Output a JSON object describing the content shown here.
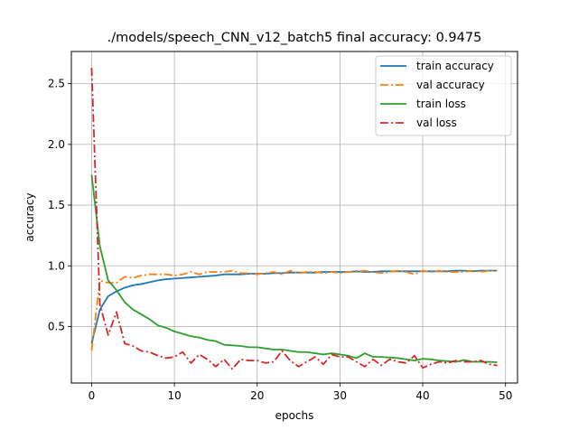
{
  "chart_data": {
    "type": "line",
    "title": "./models/speech_CNN_v12_batch5 final accuracy: 0.9475",
    "xlabel": "epochs",
    "ylabel": "accuracy",
    "xlim": [
      -2.45,
      51.45
    ],
    "ylim": [
      0.035,
      2.765
    ],
    "xticks": [
      0,
      10,
      20,
      30,
      40,
      50
    ],
    "yticks": [
      0.5,
      1.0,
      1.5,
      2.0,
      2.5
    ],
    "xtick_labels": [
      "0",
      "10",
      "20",
      "30",
      "40",
      "50"
    ],
    "ytick_labels": [
      "0.5",
      "1.0",
      "1.5",
      "2.0",
      "2.5"
    ],
    "grid": true,
    "legend_position": "top-right",
    "x": [
      0,
      1,
      2,
      3,
      4,
      5,
      6,
      7,
      8,
      9,
      10,
      11,
      12,
      13,
      14,
      15,
      16,
      17,
      18,
      19,
      20,
      21,
      22,
      23,
      24,
      25,
      26,
      27,
      28,
      29,
      30,
      31,
      32,
      33,
      34,
      35,
      36,
      37,
      38,
      39,
      40,
      41,
      42,
      43,
      44,
      45,
      46,
      47,
      48,
      49
    ],
    "series": [
      {
        "name": "train accuracy",
        "color": "#1f77b4",
        "dash": "solid",
        "values": [
          0.36,
          0.64,
          0.75,
          0.79,
          0.82,
          0.84,
          0.85,
          0.865,
          0.88,
          0.89,
          0.895,
          0.9,
          0.905,
          0.91,
          0.915,
          0.92,
          0.93,
          0.93,
          0.93,
          0.935,
          0.935,
          0.935,
          0.94,
          0.94,
          0.945,
          0.945,
          0.945,
          0.945,
          0.95,
          0.95,
          0.95,
          0.95,
          0.955,
          0.95,
          0.95,
          0.955,
          0.955,
          0.955,
          0.955,
          0.955,
          0.955,
          0.955,
          0.955,
          0.955,
          0.96,
          0.96,
          0.955,
          0.96,
          0.96,
          0.96
        ]
      },
      {
        "name": "val accuracy",
        "color": "#ff7f0e",
        "dash": "dashdot",
        "values": [
          0.3,
          0.88,
          0.86,
          0.86,
          0.91,
          0.9,
          0.92,
          0.93,
          0.93,
          0.93,
          0.92,
          0.93,
          0.95,
          0.93,
          0.95,
          0.95,
          0.95,
          0.96,
          0.94,
          0.94,
          0.93,
          0.94,
          0.95,
          0.93,
          0.96,
          0.94,
          0.95,
          0.95,
          0.94,
          0.95,
          0.94,
          0.95,
          0.95,
          0.96,
          0.95,
          0.94,
          0.95,
          0.96,
          0.95,
          0.93,
          0.96,
          0.95,
          0.96,
          0.95,
          0.95,
          0.95,
          0.96,
          0.95,
          0.96,
          0.96
        ]
      },
      {
        "name": "train loss",
        "color": "#2ca02c",
        "dash": "solid",
        "values": [
          1.75,
          1.16,
          0.88,
          0.8,
          0.7,
          0.64,
          0.6,
          0.56,
          0.51,
          0.49,
          0.46,
          0.44,
          0.42,
          0.41,
          0.39,
          0.38,
          0.35,
          0.345,
          0.34,
          0.33,
          0.33,
          0.32,
          0.31,
          0.31,
          0.3,
          0.29,
          0.29,
          0.28,
          0.27,
          0.28,
          0.27,
          0.26,
          0.24,
          0.28,
          0.25,
          0.25,
          0.245,
          0.24,
          0.23,
          0.22,
          0.235,
          0.23,
          0.22,
          0.215,
          0.21,
          0.225,
          0.21,
          0.21,
          0.21,
          0.205
        ]
      },
      {
        "name": "val loss",
        "color": "#d62728",
        "dash": "dashdot",
        "values": [
          2.63,
          0.68,
          0.43,
          0.62,
          0.36,
          0.34,
          0.3,
          0.29,
          0.26,
          0.24,
          0.25,
          0.29,
          0.2,
          0.27,
          0.23,
          0.17,
          0.23,
          0.15,
          0.23,
          0.22,
          0.22,
          0.2,
          0.21,
          0.3,
          0.22,
          0.17,
          0.21,
          0.25,
          0.19,
          0.27,
          0.25,
          0.25,
          0.21,
          0.17,
          0.23,
          0.18,
          0.23,
          0.21,
          0.2,
          0.26,
          0.16,
          0.19,
          0.21,
          0.2,
          0.22,
          0.21,
          0.21,
          0.22,
          0.19,
          0.18
        ]
      }
    ]
  }
}
